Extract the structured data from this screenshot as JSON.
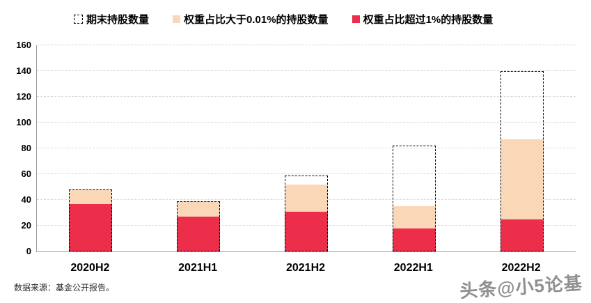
{
  "colors": {
    "red": "#ED2E4B",
    "peach": "#FAD7B6",
    "outline": "#000000",
    "gridline": "#D8D8D8",
    "axis": "#9E9E9E"
  },
  "legend": {
    "items": [
      {
        "label": "期末持股数量",
        "swatch": "outline"
      },
      {
        "label": "权重占比大于0.01%的持股数量",
        "swatch": "peach"
      },
      {
        "label": "权重占比超过1%的持股数量",
        "swatch": "red"
      }
    ]
  },
  "chart_data": {
    "type": "bar",
    "subtype": "overlaid-stacked-counts",
    "categories": [
      "2020H2",
      "2021H1",
      "2021H2",
      "2022H1",
      "2022H2"
    ],
    "series": [
      {
        "name": "期末持股数量",
        "style": "dashed-outline",
        "values": [
          48,
          39,
          59,
          82,
          140
        ]
      },
      {
        "name": "权重占比大于0.01%的持股数量",
        "style": "peach-fill",
        "values": [
          48,
          39,
          52,
          35,
          87
        ]
      },
      {
        "name": "权重占比超过1%的持股数量",
        "style": "red-fill",
        "values": [
          37,
          27,
          31,
          18,
          25
        ]
      }
    ],
    "ylim": [
      0,
      160
    ],
    "yticks": [
      0,
      20,
      40,
      60,
      80,
      100,
      120,
      140,
      160
    ],
    "grid": "horizontal-dashed",
    "legend_position": "top"
  },
  "footer": {
    "source": "数据来源：基金公开报告。"
  },
  "watermark": {
    "text": "头条@小5论基"
  }
}
